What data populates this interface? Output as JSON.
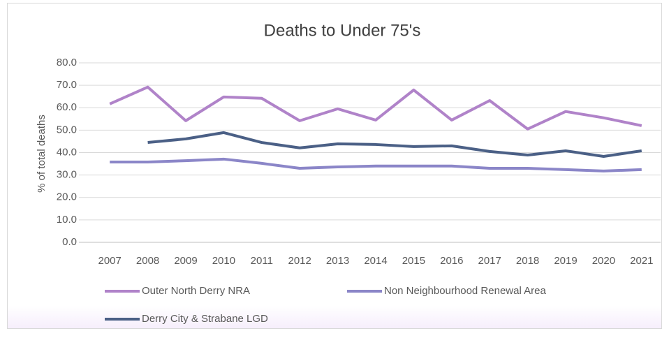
{
  "chart_data": {
    "type": "line",
    "title": "Deaths to Under 75's",
    "y_label": "% of total deaths",
    "categories": [
      "2007",
      "2008",
      "2009",
      "2010",
      "2011",
      "2012",
      "2013",
      "2014",
      "2015",
      "2016",
      "2017",
      "2018",
      "2019",
      "2020",
      "2021"
    ],
    "series": [
      {
        "name": "Outer North Derry NRA",
        "color": "#b083c9",
        "values": [
          61.7,
          69.2,
          54.2,
          64.8,
          64.2,
          54.2,
          59.5,
          54.5,
          67.9,
          54.5,
          63.2,
          50.5,
          58.3,
          55.5,
          52.0
        ]
      },
      {
        "name": "Non Neighbourhood Renewal Area",
        "color": "#8b86c8",
        "values": [
          35.8,
          35.8,
          36.4,
          37.1,
          35.2,
          33.0,
          33.6,
          34.0,
          34.0,
          34.0,
          33.0,
          33.0,
          32.4,
          31.8,
          32.4
        ]
      },
      {
        "name": "Derry City & Strabane LGD",
        "color": "#4b6086",
        "values": [
          null,
          44.5,
          46.1,
          48.9,
          44.5,
          42.1,
          43.9,
          43.6,
          42.7,
          43.0,
          40.5,
          38.9,
          40.8,
          38.3,
          40.8
        ]
      }
    ],
    "ylim": [
      0,
      80
    ],
    "yticks": [
      {
        "value": 0,
        "label": "0.0"
      },
      {
        "value": 10,
        "label": "10.0"
      },
      {
        "value": 20,
        "label": "20.0"
      },
      {
        "value": 30,
        "label": "30.0"
      },
      {
        "value": 40,
        "label": "40.0"
      },
      {
        "value": 50,
        "label": "50.0"
      },
      {
        "value": 60,
        "label": "60.0"
      },
      {
        "value": 70,
        "label": "70.0"
      },
      {
        "value": 80,
        "label": "80.0"
      }
    ],
    "grid": true,
    "legend": "bottom"
  }
}
